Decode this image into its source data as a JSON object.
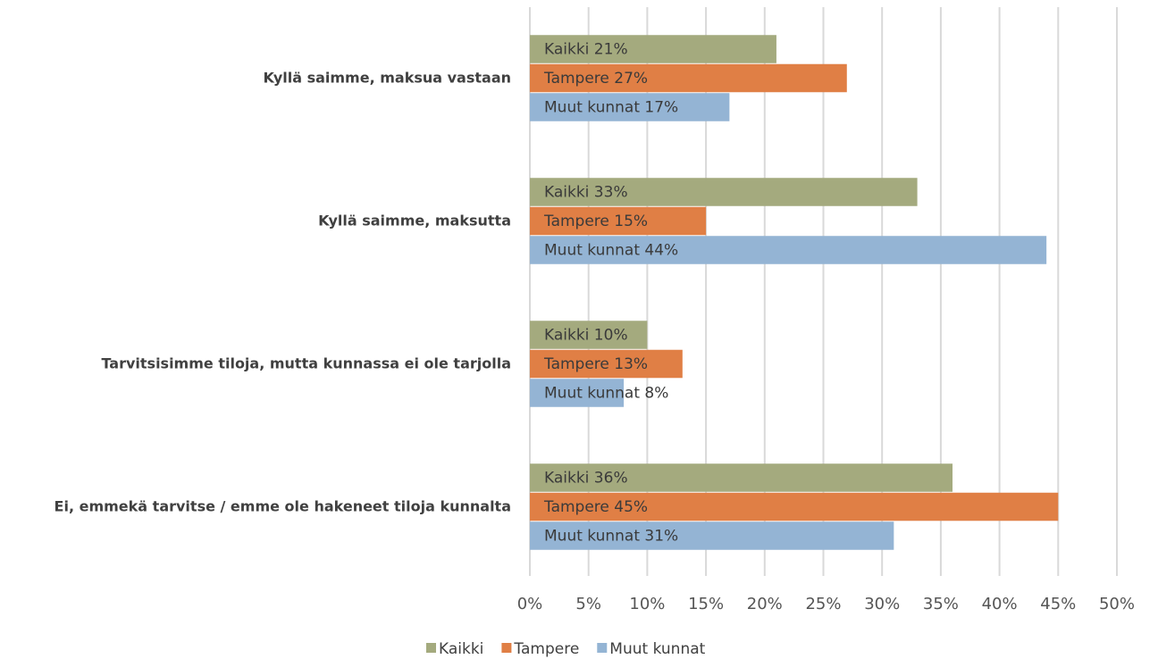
{
  "chart_data": {
    "type": "bar",
    "orientation": "horizontal",
    "categories": [
      "Kyllä saimme, maksua vastaan",
      "Kyllä saimme, maksutta",
      "Tarvitsisimme tiloja, mutta kunnassa ei ole tarjolla",
      "Ei, emmekä tarvitse / emme ole hakeneet tiloja kunnalta"
    ],
    "series": [
      {
        "name": "Kaikki",
        "color": "#a4aa7e",
        "values": [
          21,
          33,
          10,
          36
        ],
        "value_labels": [
          "Kaikki 21%",
          "Kaikki 33%",
          "Kaikki 10%",
          "Kaikki 36%"
        ]
      },
      {
        "name": "Tampere",
        "color": "#e07f45",
        "values": [
          27,
          15,
          13,
          45
        ],
        "value_labels": [
          "Tampere 27%",
          "Tampere 15%",
          "Tampere 13%",
          "Tampere 45%"
        ]
      },
      {
        "name": "Muut kunnat",
        "color": "#94b4d4",
        "values": [
          17,
          44,
          8,
          31
        ],
        "value_labels": [
          "Muut kunnat 17%",
          "Muut kunnat 44%",
          "Muut kunnat 8%",
          "Muut kunnat 31%"
        ]
      }
    ],
    "xlim": [
      0,
      50
    ],
    "xticks": [
      {
        "value": 0,
        "label": "0%"
      },
      {
        "value": 5,
        "label": "5%"
      },
      {
        "value": 10,
        "label": "10%"
      },
      {
        "value": 15,
        "label": "15%"
      },
      {
        "value": 20,
        "label": "20%"
      },
      {
        "value": 25,
        "label": "25%"
      },
      {
        "value": 30,
        "label": "30%"
      },
      {
        "value": 35,
        "label": "35%"
      },
      {
        "value": 40,
        "label": "40%"
      },
      {
        "value": 45,
        "label": "45%"
      },
      {
        "value": 50,
        "label": "50%"
      }
    ],
    "grid": true,
    "legend": "bottom"
  }
}
